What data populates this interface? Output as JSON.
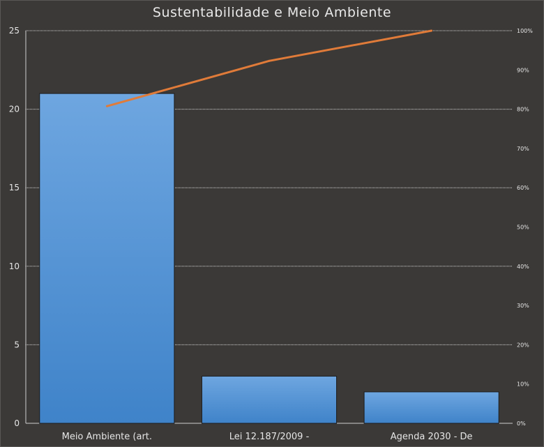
{
  "chart_data": {
    "type": "bar",
    "title": "Sustentabilidade e Meio Ambiente",
    "categories": [
      "Meio Ambiente (art.",
      "Lei 12.187/2009 -",
      "Agenda 2030 - De"
    ],
    "series": [
      {
        "type": "bar",
        "values": [
          21,
          3,
          2
        ],
        "color": "#4a90d9"
      },
      {
        "type": "line",
        "axis": "secondary",
        "values": [
          80.77,
          92.31,
          100
        ],
        "color": "#e07b39"
      }
    ],
    "ylim": [
      0,
      25
    ],
    "yticks": [
      "0",
      "5",
      "10",
      "15",
      "20",
      "25"
    ],
    "y2lim": [
      0,
      100
    ],
    "y2ticks": [
      "0%",
      "10%",
      "20%",
      "30%",
      "40%",
      "50%",
      "60%",
      "70%",
      "80%",
      "90%",
      "100%"
    ],
    "grid": true,
    "legend": "none"
  }
}
